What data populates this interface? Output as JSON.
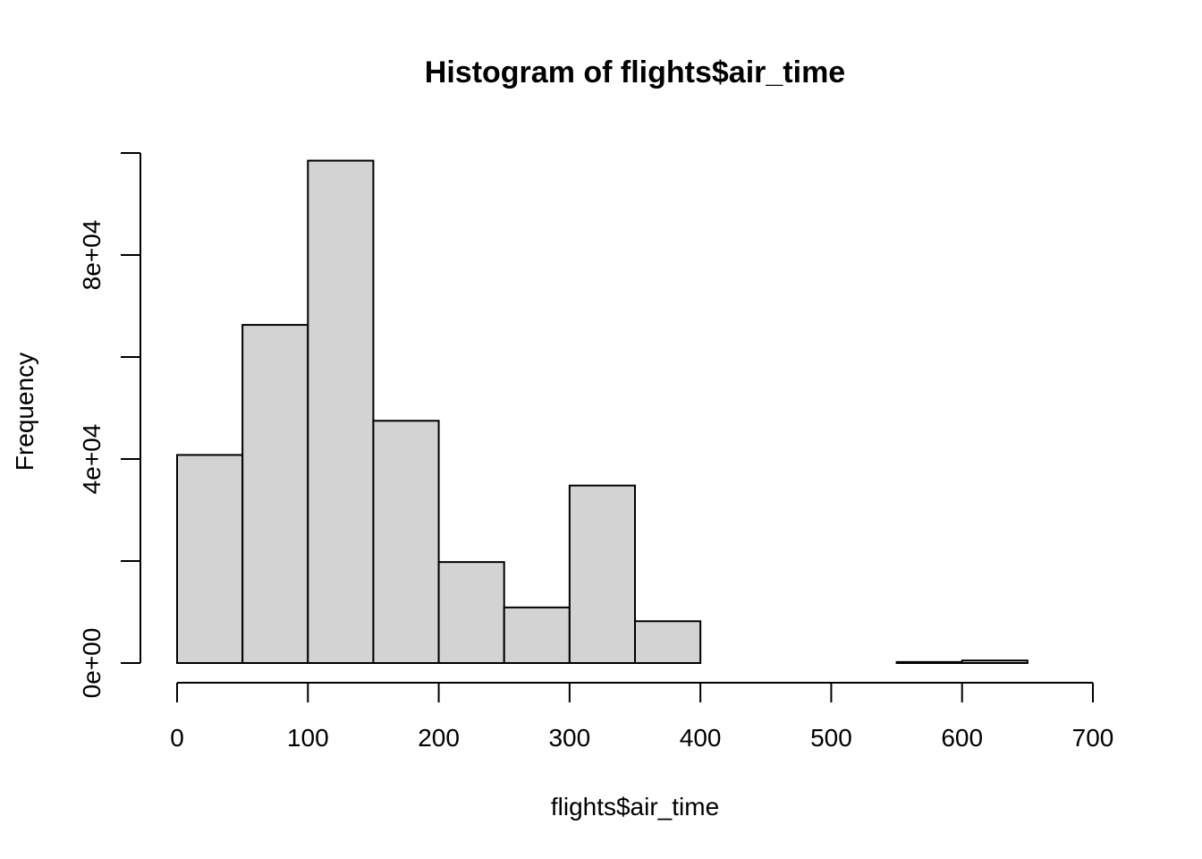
{
  "chart_data": {
    "type": "bar",
    "title": "Histogram of flights$air_time",
    "xlabel": "flights$air_time",
    "ylabel": "Frequency",
    "bin_edges": [
      0,
      50,
      100,
      150,
      200,
      250,
      300,
      350,
      400,
      450,
      500,
      550,
      600,
      650,
      700
    ],
    "values": [
      40800,
      66300,
      98500,
      47500,
      19800,
      10900,
      34800,
      8200,
      0,
      0,
      0,
      200,
      500,
      0
    ],
    "xlim": [
      0,
      700
    ],
    "ylim": [
      0,
      100000
    ],
    "x_ticks": [
      0,
      100,
      200,
      300,
      400,
      500,
      600,
      700
    ],
    "x_tick_labels": [
      "0",
      "100",
      "200",
      "300",
      "400",
      "500",
      "600",
      "700"
    ],
    "y_ticks": [
      0,
      20000,
      40000,
      60000,
      80000,
      100000
    ],
    "y_tick_labels": [
      {
        "value": 0,
        "label": "0e+00"
      },
      {
        "value": 40000,
        "label": "4e+04"
      },
      {
        "value": 80000,
        "label": "8e+04"
      }
    ],
    "bar_fill": "#d3d3d3",
    "bar_stroke": "#000000",
    "grid": false,
    "legend": "none"
  }
}
